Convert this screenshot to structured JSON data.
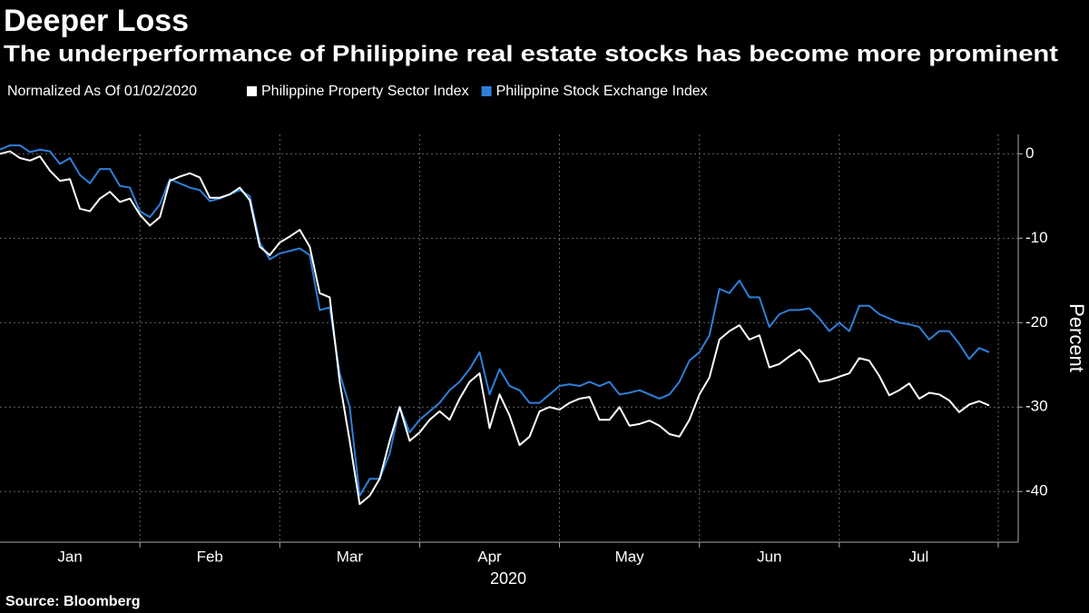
{
  "chart_data": {
    "type": "line",
    "title": "Deeper Loss",
    "subtitle": "The underperformance of Philippine real estate stocks has become more prominent",
    "legend_note": "Normalized As Of 01/02/2020",
    "xlabel": "2020",
    "ylabel": "Percent",
    "source": "Source: Bloomberg",
    "categories": [
      "Jan",
      null,
      null,
      null,
      null,
      null,
      null,
      null,
      null,
      null,
      null,
      null,
      null,
      null,
      "Feb",
      null,
      null,
      null,
      null,
      null,
      null,
      null,
      null,
      null,
      null,
      null,
      null,
      null,
      "Mar",
      null,
      null,
      null,
      null,
      null,
      null,
      null,
      null,
      null,
      null,
      null,
      null,
      null,
      "Apr",
      null,
      null,
      null,
      null,
      null,
      null,
      null,
      null,
      null,
      null,
      null,
      null,
      null,
      "May",
      null,
      null,
      null,
      null,
      null,
      null,
      null,
      null,
      null,
      null,
      null,
      null,
      null,
      "Jun",
      null,
      null,
      null,
      null,
      null,
      null,
      null,
      null,
      null,
      null,
      null,
      null,
      null,
      "Jul",
      null,
      null,
      null,
      null,
      null,
      null,
      null,
      null,
      null,
      null,
      null,
      null,
      null,
      null,
      null
    ],
    "series": [
      {
        "name": "Philippine Property Sector Index",
        "color": "#ffffff",
        "values": [
          0,
          0.3,
          -0.5,
          -0.8,
          -0.3,
          -2,
          -3.2,
          -3,
          -6.5,
          -6.8,
          -5.3,
          -4.5,
          -5.7,
          -5.3,
          -7.2,
          -8.5,
          -7.5,
          -3.2,
          -2.7,
          -2.3,
          -2.8,
          -5.2,
          -5.2,
          -4.8,
          -4,
          -5.5,
          -11,
          -12,
          -10.5,
          -9.8,
          -9,
          -11,
          -16.5,
          -17,
          -27,
          -34,
          -41.5,
          -40.5,
          -38.5,
          -34,
          -30,
          -34,
          -33,
          -31.5,
          -30.5,
          -31.5,
          -29,
          -27,
          -26,
          -32.5,
          -28.5,
          -31,
          -34.5,
          -33.5,
          -30.5,
          -30,
          -30.3,
          -29.5,
          -29,
          -28.8,
          -31.5,
          -31.5,
          -30,
          -32.2,
          -32,
          -31.6,
          -32.2,
          -33.2,
          -33.5,
          -31.5,
          -28.5,
          -26.5,
          -22,
          -21,
          -20.3,
          -22,
          -21.5,
          -25.3,
          -24.9,
          -24,
          -23.2,
          -24.5,
          -27,
          -26.8,
          -26.4,
          -26,
          -24.2,
          -24.5,
          -26.3,
          -28.6,
          -28,
          -27.2,
          -29,
          -28.3,
          -28.5,
          -29.2,
          -30.6,
          -29.7,
          -29.3,
          -29.8
        ]
      },
      {
        "name": "Philippine Stock Exchange Index",
        "color": "#2e7fd8",
        "values": [
          0.5,
          1,
          1,
          0.2,
          0.5,
          0.3,
          -1.2,
          -0.5,
          -2.5,
          -3.5,
          -1.8,
          -1.8,
          -3.8,
          -4,
          -6.8,
          -7.5,
          -6,
          -3,
          -3.5,
          -4,
          -4.3,
          -5.6,
          -5.3,
          -4.8,
          -4.3,
          -5,
          -10.5,
          -12.5,
          -11.8,
          -11.5,
          -11.2,
          -12,
          -18.5,
          -18.2,
          -26,
          -30,
          -40.5,
          -38.5,
          -38.5,
          -35.5,
          -30,
          -33,
          -31.5,
          -30.5,
          -29.5,
          -28,
          -27,
          -25.5,
          -23.5,
          -28.5,
          -25.5,
          -27.5,
          -28,
          -29.5,
          -29.5,
          -28.5,
          -27.5,
          -27.3,
          -27.5,
          -27,
          -27.5,
          -27,
          -28.5,
          -28.3,
          -28,
          -28.5,
          -29,
          -28.5,
          -27,
          -24.5,
          -23.5,
          -21.5,
          -16,
          -16.5,
          -15,
          -17,
          -17,
          -20.5,
          -19,
          -18.5,
          -18.5,
          -18.3,
          -19.5,
          -21,
          -20,
          -21,
          -18,
          -18,
          -19,
          -19.5,
          -20,
          -20.2,
          -20.5,
          -22,
          -21,
          -21,
          -22.5,
          -24.3,
          -23,
          -23.5
        ]
      }
    ],
    "ylim": [
      -46,
      2.3
    ],
    "yticks": [
      0,
      -10,
      -20,
      -30,
      -40
    ],
    "grid": true
  }
}
